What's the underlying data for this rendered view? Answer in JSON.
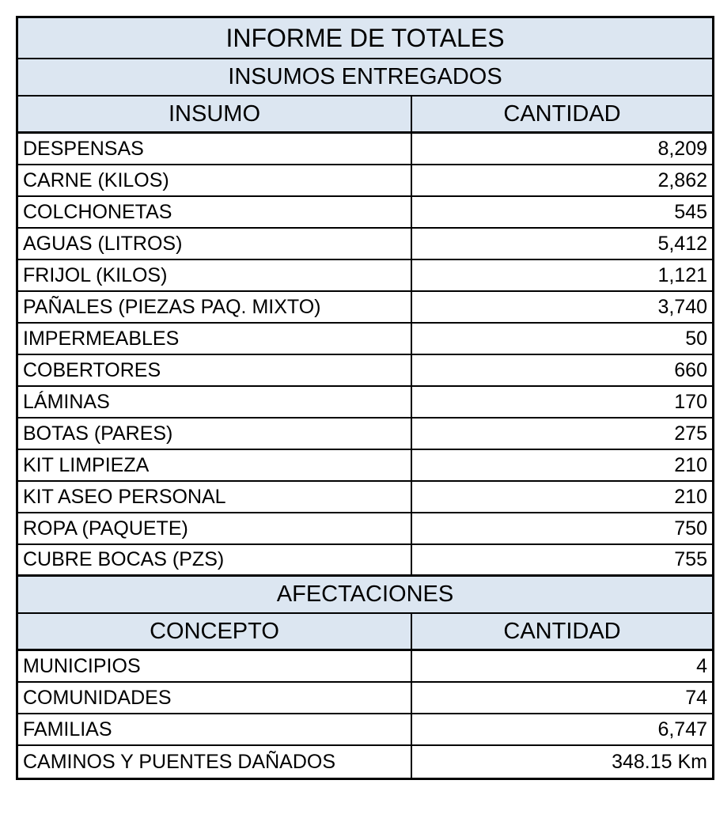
{
  "report": {
    "title": "INFORME DE TOTALES",
    "supplies": {
      "section_title": "INSUMOS ENTREGADOS",
      "col_item": "INSUMO",
      "col_qty": "CANTIDAD",
      "rows": [
        {
          "item": "DESPENSAS",
          "qty": "8,209"
        },
        {
          "item": "CARNE (KILOS)",
          "qty": "2,862"
        },
        {
          "item": "COLCHONETAS",
          "qty": "545"
        },
        {
          "item": "AGUAS (LITROS)",
          "qty": "5,412"
        },
        {
          "item": "FRIJOL (KILOS)",
          "qty": "1,121"
        },
        {
          "item": "PAÑALES (PIEZAS PAQ. MIXTO)",
          "qty": "3,740"
        },
        {
          "item": "IMPERMEABLES",
          "qty": "50"
        },
        {
          "item": "COBERTORES",
          "qty": "660"
        },
        {
          "item": "LÁMINAS",
          "qty": "170"
        },
        {
          "item": "BOTAS (PARES)",
          "qty": "275"
        },
        {
          "item": "KIT LIMPIEZA",
          "qty": "210"
        },
        {
          "item": "KIT ASEO PERSONAL",
          "qty": "210"
        },
        {
          "item": "ROPA (PAQUETE)",
          "qty": "750"
        },
        {
          "item": "CUBRE BOCAS (PZS)",
          "qty": "755"
        }
      ]
    },
    "impacts": {
      "section_title": "AFECTACIONES",
      "col_item": "CONCEPTO",
      "col_qty": "CANTIDAD",
      "rows": [
        {
          "item": "MUNICIPIOS",
          "qty": "4"
        },
        {
          "item": "COMUNIDADES",
          "qty": "74"
        },
        {
          "item": "FAMILIAS",
          "qty": "6,747"
        },
        {
          "item": "CAMINOS Y PUENTES DAÑADOS",
          "qty": "348.15 Km"
        }
      ]
    }
  }
}
